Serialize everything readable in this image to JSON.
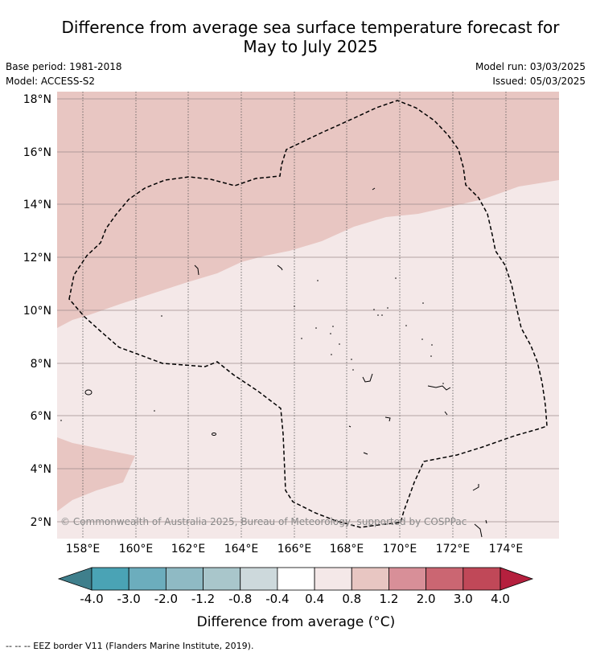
{
  "title_line1": "Difference from average sea surface temperature forecast for",
  "title_line2": "May to July 2025",
  "base_period": "Base period: 1981-2018",
  "model": "Model: ACCESS-S2",
  "model_run": "Model run: 03/03/2025",
  "issued": "Issued: 05/03/2025",
  "copyright": "© Commonwealth of Australia 2025, Bureau of Meteorology, supported by COSPPac",
  "lat_labels": [
    "2°N",
    "4°N",
    "6°N",
    "8°N",
    "10°N",
    "12°N",
    "14°N",
    "16°N",
    "18°N"
  ],
  "lon_labels": [
    "158°E",
    "160°E",
    "162°E",
    "164°E",
    "166°E",
    "168°E",
    "170°E",
    "172°E",
    "174°E"
  ],
  "colorbar": {
    "title": "Difference from average (°C)",
    "tick_labels": [
      "-4.0",
      "-3.0",
      "-2.0",
      "-1.2",
      "-0.8",
      "-0.4",
      "0.4",
      "0.8",
      "1.2",
      "2.0",
      "3.0",
      "4.0"
    ],
    "colors": [
      "#3f7f8c",
      "#4aa3b5",
      "#6cadbd",
      "#8fbac4",
      "#a9c6cb",
      "#cdd9dc",
      "#ffffff",
      "#f4e8e8",
      "#e8c6c2",
      "#d88f98",
      "#cb6672",
      "#c04858",
      "#b5203e"
    ]
  },
  "legend_note": "--  --  -- EEZ border V11 (Flanders Marine Institute, 2019)."
}
